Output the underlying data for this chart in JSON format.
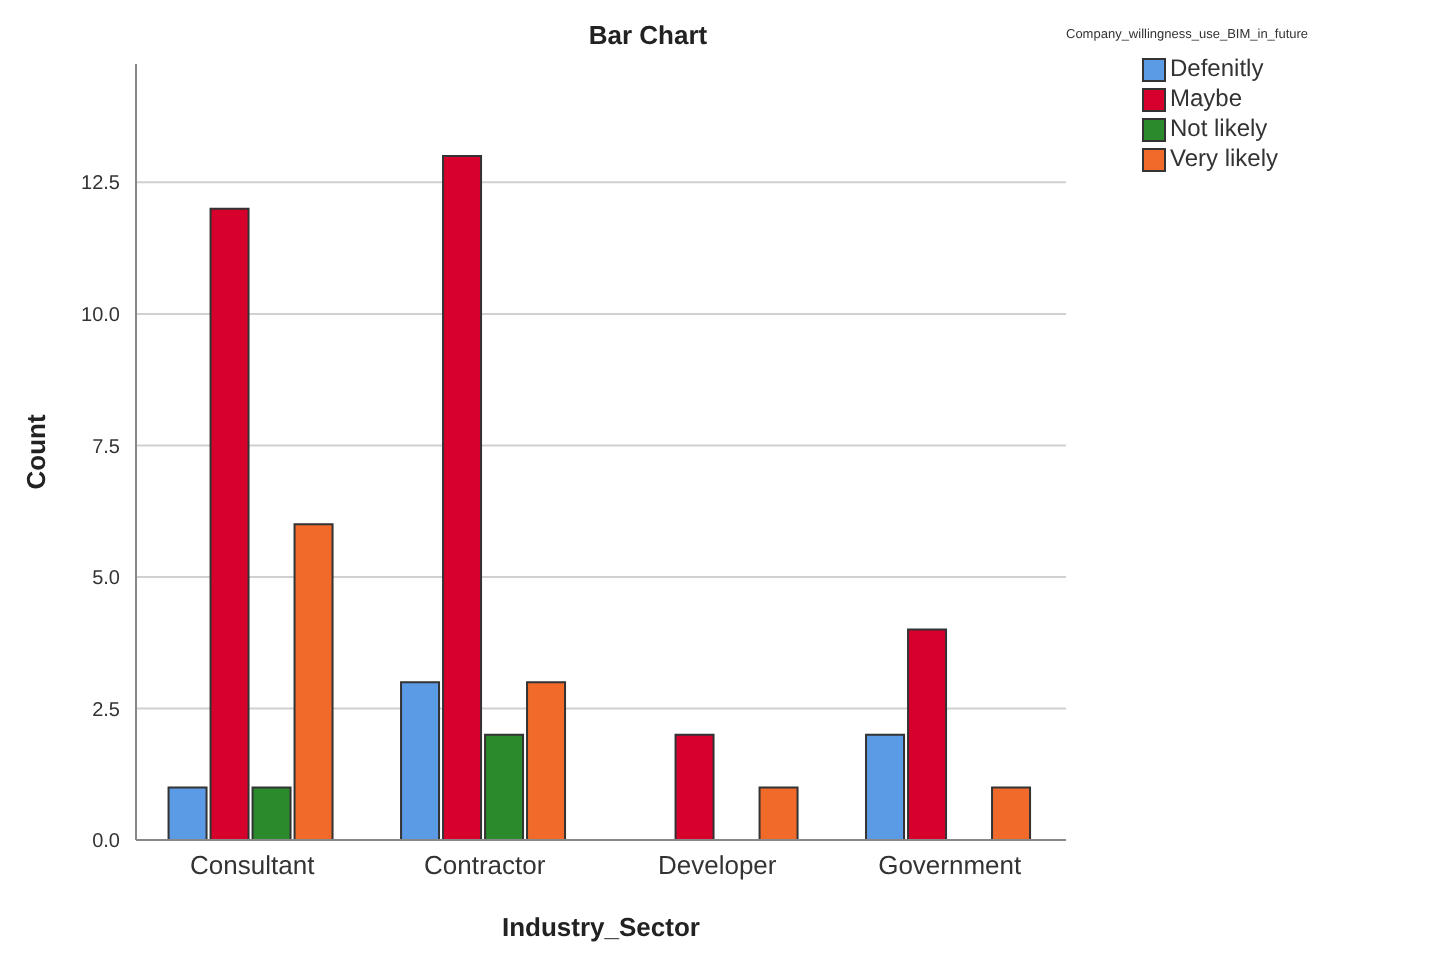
{
  "chart_data": {
    "type": "bar",
    "title": "Bar Chart",
    "xlabel": "Industry_Sector",
    "ylabel": "Count",
    "legend_title": "Company_willingness_use_BIM_in_future",
    "categories": [
      "Consultant",
      "Contractor",
      "Developer",
      "Government"
    ],
    "series": [
      {
        "name": "Defenitly",
        "color": "#5b9be6",
        "values": [
          1,
          3,
          null,
          2
        ]
      },
      {
        "name": "Maybe",
        "color": "#d7002d",
        "values": [
          12,
          13,
          2,
          4
        ]
      },
      {
        "name": "Not likely",
        "color": "#2b8a2b",
        "values": [
          1,
          2,
          null,
          null
        ]
      },
      {
        "name": "Very likely",
        "color": "#f26a2a",
        "values": [
          6,
          3,
          1,
          1
        ]
      }
    ],
    "ylim": [
      0,
      14.75
    ],
    "yticks": [
      {
        "value": 0,
        "label": "0.0"
      },
      {
        "value": 2.5,
        "label": "2.5"
      },
      {
        "value": 5,
        "label": "5.0"
      },
      {
        "value": 7.5,
        "label": "7.5"
      },
      {
        "value": 10,
        "label": "10.0"
      },
      {
        "value": 12.5,
        "label": "12.5"
      }
    ],
    "grid": "y",
    "legend": "top right"
  }
}
